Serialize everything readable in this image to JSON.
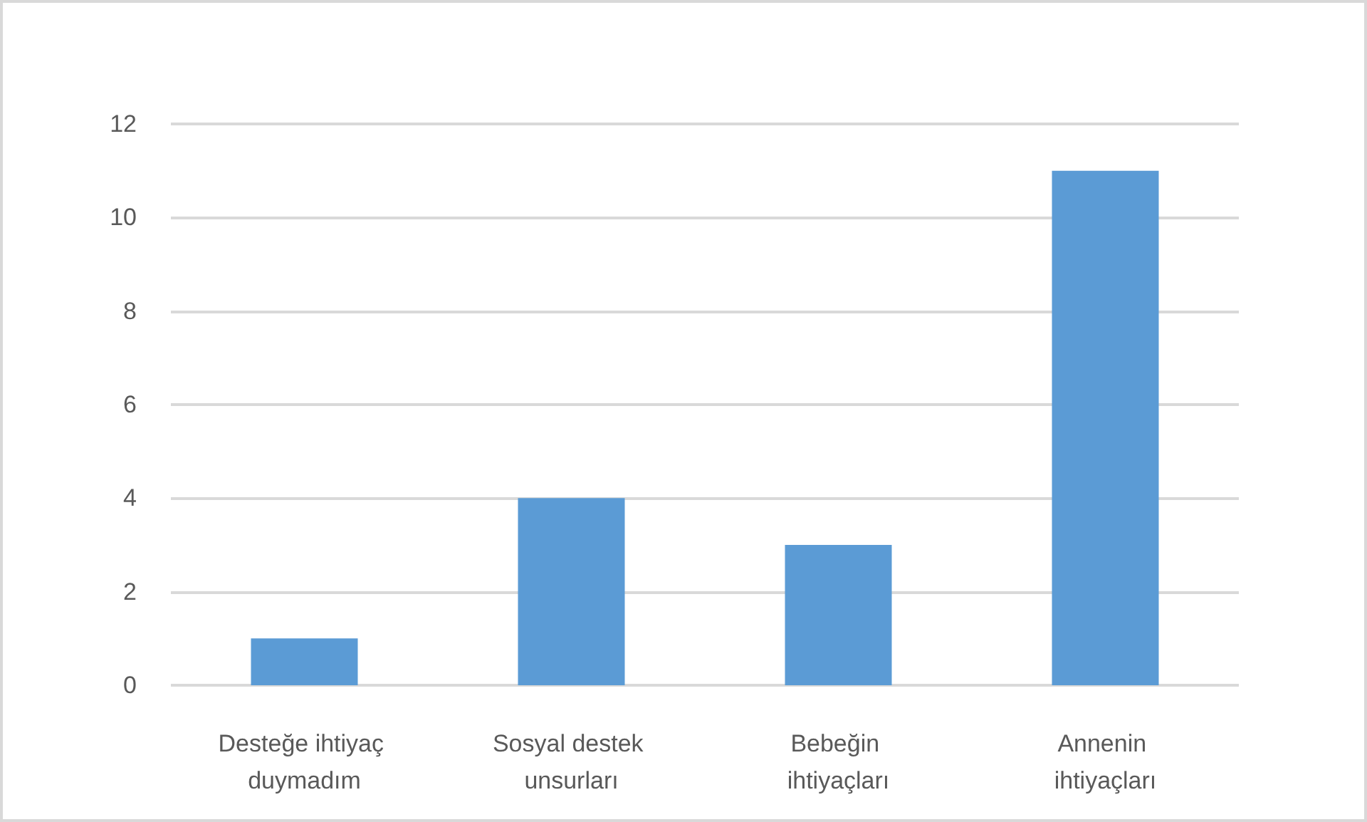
{
  "chart_data": {
    "type": "bar",
    "categories": [
      "Desteğe ihtiyaç duymadım",
      "Sosyal destek unsurları",
      "Bebeğin ihtiyaçları",
      "Annenin ihtiyaçları"
    ],
    "values": [
      1,
      4,
      3,
      11
    ],
    "color": "#5b9bd5",
    "ylim": [
      0,
      12
    ],
    "yticks": [
      0,
      2,
      4,
      6,
      8,
      10,
      12
    ],
    "grid": "y"
  }
}
